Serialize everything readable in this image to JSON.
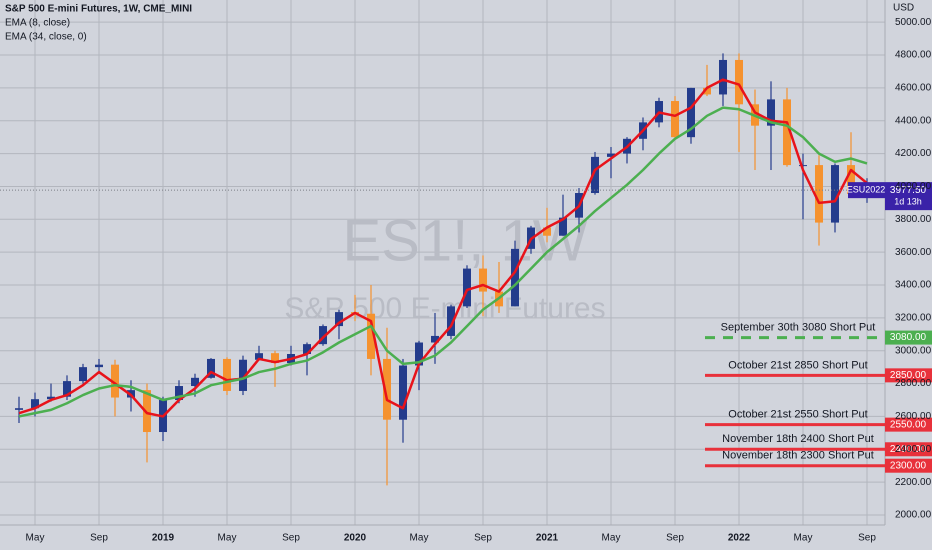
{
  "chart_data": {
    "type": "candlestick",
    "title": "S&P 500 E-mini Futures, 1W, CME_MINI",
    "watermark_symbol": "ES1!, 1W",
    "watermark_name": "S&P 500 E-mini Futures",
    "currency": "USD",
    "categories": [
      null,
      "May",
      null,
      null,
      null,
      "Sep",
      null,
      null,
      null,
      "2019",
      null,
      null,
      null,
      "May",
      null,
      null,
      null,
      "Sep",
      null,
      null,
      null,
      "2020",
      null,
      null,
      null,
      "May",
      null,
      null,
      null,
      "Sep",
      null,
      null,
      null,
      "2021",
      null,
      null,
      null,
      "May",
      null,
      null,
      null,
      "Sep",
      null,
      null,
      null,
      "2022",
      null,
      null,
      null,
      "May",
      null,
      null,
      null,
      "Sep"
    ],
    "ohlc": {
      "colors": {
        "up": "#243c8c",
        "down": "#f5922f"
      },
      "open": [
        2640,
        2650,
        2705,
        2720,
        2815,
        2900,
        2915,
        2715,
        2760,
        2505,
        2700,
        2785,
        2835,
        2950,
        2755,
        2945,
        2985,
        2925,
        2980,
        3040,
        3150,
        3235,
        3225,
        2950,
        2580,
        2910,
        3050,
        3090,
        3270,
        3500,
        3360,
        3270,
        3620,
        3750,
        3700,
        3810,
        3960,
        4180,
        4200,
        4290,
        4390,
        4520,
        4300,
        4600,
        4560,
        4770,
        4500,
        4370,
        4530,
        4130,
        4130,
        3780,
        4130,
        3955
      ],
      "high": [
        2720,
        2745,
        2800,
        2850,
        2920,
        2950,
        2945,
        2820,
        2800,
        2720,
        2820,
        2860,
        2955,
        2960,
        2970,
        3030,
        3000,
        3030,
        3050,
        3160,
        3250,
        3340,
        3400,
        3140,
        2950,
        3060,
        3230,
        3280,
        3520,
        3580,
        3540,
        3670,
        3760,
        3870,
        3950,
        3990,
        4210,
        4240,
        4300,
        4420,
        4540,
        4550,
        4600,
        4740,
        4810,
        4810,
        4590,
        4640,
        4600,
        4200,
        4190,
        4140,
        4330,
        4050
      ],
      "low": [
        2560,
        2600,
        2690,
        2700,
        2800,
        2860,
        2600,
        2630,
        2320,
        2450,
        2680,
        2720,
        2830,
        2730,
        2730,
        2940,
        2780,
        2910,
        2850,
        3030,
        3070,
        3180,
        2850,
        2180,
        2440,
        2760,
        2920,
        3070,
        3260,
        3210,
        3230,
        3270,
        3590,
        3660,
        3700,
        3720,
        3950,
        4050,
        4140,
        4220,
        4360,
        4290,
        4260,
        4550,
        4490,
        4210,
        4100,
        4100,
        4120,
        3800,
        3640,
        3720,
        3950,
        3900
      ],
      "close": [
        2650,
        2705,
        2720,
        2815,
        2900,
        2915,
        2715,
        2760,
        2505,
        2700,
        2785,
        2835,
        2950,
        2755,
        2945,
        2985,
        2925,
        2980,
        3040,
        3150,
        3235,
        3225,
        2950,
        2580,
        2910,
        3050,
        3090,
        3270,
        3500,
        3360,
        3270,
        3620,
        3750,
        3700,
        3810,
        3960,
        4180,
        4200,
        4290,
        4390,
        4520,
        4300,
        4600,
        4560,
        4770,
        4500,
        4370,
        4530,
        4130,
        4130,
        3780,
        4130,
        3955,
        3977.5
      ]
    },
    "series": [
      {
        "name": "EMA (8, close)",
        "color": "#e8131b",
        "values": [
          2620,
          2650,
          2700,
          2730,
          2790,
          2870,
          2800,
          2730,
          2620,
          2600,
          2700,
          2770,
          2870,
          2820,
          2830,
          2950,
          2930,
          2950,
          2980,
          3080,
          3170,
          3230,
          3180,
          2700,
          2650,
          2920,
          3040,
          3150,
          3370,
          3400,
          3360,
          3480,
          3680,
          3750,
          3800,
          3880,
          4100,
          4170,
          4240,
          4340,
          4450,
          4430,
          4480,
          4600,
          4650,
          4620,
          4450,
          4400,
          4390,
          4100,
          3900,
          3910,
          4100,
          4020
        ]
      },
      {
        "name": "EMA (34, close, 0)",
        "color": "#4caf50",
        "values": [
          2600,
          2620,
          2640,
          2680,
          2730,
          2770,
          2790,
          2780,
          2740,
          2700,
          2720,
          2740,
          2790,
          2810,
          2830,
          2870,
          2890,
          2920,
          2940,
          2990,
          3050,
          3100,
          3150,
          3000,
          2920,
          2930,
          2970,
          3050,
          3150,
          3250,
          3320,
          3400,
          3500,
          3600,
          3680,
          3760,
          3850,
          3930,
          4010,
          4100,
          4200,
          4290,
          4350,
          4430,
          4480,
          4470,
          4430,
          4390,
          4370,
          4300,
          4200,
          4150,
          4170,
          4140
        ]
      }
    ],
    "price_lines": [
      {
        "value": 3080,
        "value_label": "3080.00",
        "text": "September 30th 3080 Short Put",
        "color": "#4caf50",
        "dashed": true
      },
      {
        "value": 2850,
        "value_label": "2850.00",
        "text": "October 21st 2850 Short Put",
        "color": "#e8313b",
        "dashed": false
      },
      {
        "value": 2550,
        "value_label": "2550.00",
        "text": "October 21st 2550 Short Put",
        "color": "#e8313b",
        "dashed": false
      },
      {
        "value": 2400,
        "value_label": "2400.00",
        "text": "November 18th 2400 Short Put",
        "color": "#e8313b",
        "dashed": false
      },
      {
        "value": 2300,
        "value_label": "2300.00",
        "text": "November 18th 2300 Short Put",
        "color": "#e8313b",
        "dashed": false
      }
    ],
    "last_price": {
      "symbol": "ESU2022",
      "value": 3977.5,
      "value_label": "3977.50",
      "countdown": "1d 13h",
      "color": "#3a22a8"
    },
    "ylim": [
      1939,
      5135
    ],
    "yticks": [
      {
        "value": 2000,
        "label": "2000.00"
      },
      {
        "value": 2200,
        "label": "2200.00"
      },
      {
        "value": 2400,
        "label": "2400.00"
      },
      {
        "value": 2600,
        "label": "2600.00"
      },
      {
        "value": 2800,
        "label": "2800.00"
      },
      {
        "value": 3000,
        "label": "3000.00"
      },
      {
        "value": 3200,
        "label": "3200.00"
      },
      {
        "value": 3400,
        "label": "3400.00"
      },
      {
        "value": 3600,
        "label": "3600.00"
      },
      {
        "value": 3800,
        "label": "3800.00"
      },
      {
        "value": 4000,
        "label": "4000.00"
      },
      {
        "value": 4200,
        "label": "4200.00"
      },
      {
        "value": 4400,
        "label": "4400.00"
      },
      {
        "value": 4600,
        "label": "4600.00"
      },
      {
        "value": 4800,
        "label": "4800.00"
      },
      {
        "value": 5000,
        "label": "5000.00"
      }
    ],
    "grid": true
  }
}
